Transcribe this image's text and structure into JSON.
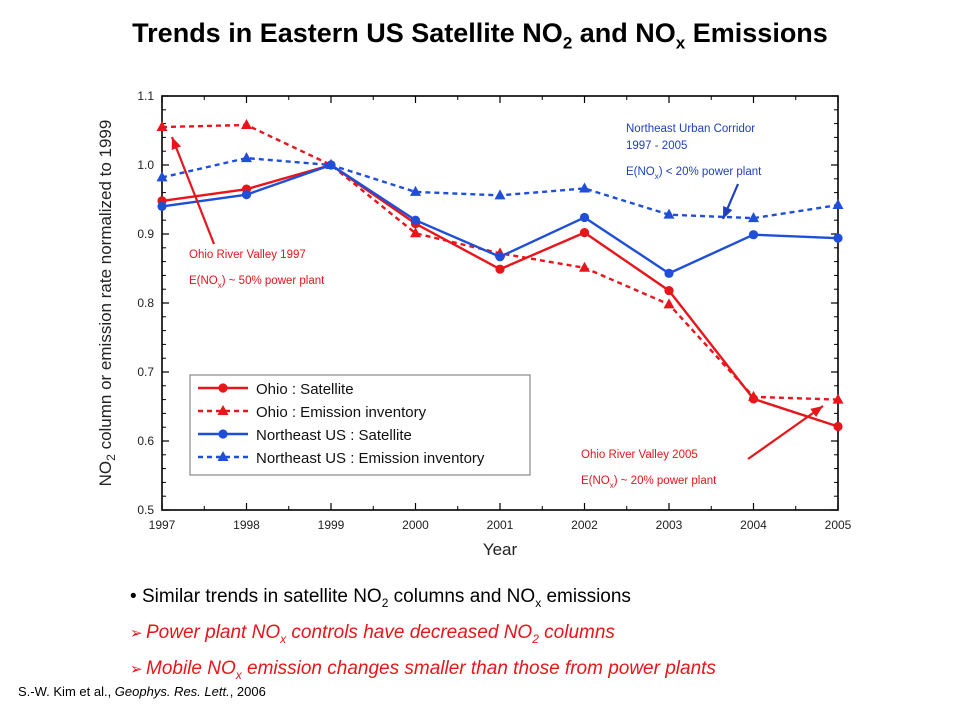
{
  "title": {
    "main": "Trends in Eastern US Satellite NO",
    "sub1": "2",
    "mid": " and NO",
    "sub2": "x",
    "end": " Emissions"
  },
  "chart_data": {
    "type": "line",
    "x": [
      1997,
      1998,
      1999,
      2000,
      2001,
      2002,
      2003,
      2004,
      2005
    ],
    "xlabel": "Year",
    "ylabel": {
      "pre": "NO",
      "sub": "2",
      "post": " column or emission rate normalized to 1999"
    },
    "ylim": [
      0.5,
      1.1
    ],
    "yticks": [
      0.5,
      0.6,
      0.7,
      0.8,
      0.9,
      1.0,
      1.1
    ],
    "ytick_labels": [
      "0.5",
      "0.6",
      "0.7",
      "0.8",
      "0.9",
      "1.0",
      "1.1"
    ],
    "xtick_labels": [
      "1997",
      "1998",
      "1999",
      "2000",
      "2001",
      "2002",
      "2003",
      "2004",
      "2005"
    ],
    "series": [
      {
        "name": "Ohio : Satellite",
        "color": "#e8151a",
        "dash": false,
        "marker": "circle",
        "values": [
          0.948,
          0.965,
          1.0,
          0.915,
          0.849,
          0.902,
          0.818,
          0.661,
          0.621
        ]
      },
      {
        "name": "Ohio : Emission inventory",
        "color": "#e8151a",
        "dash": true,
        "marker": "triangle",
        "values": [
          1.055,
          1.058,
          1.0,
          0.901,
          0.872,
          0.851,
          0.798,
          0.664,
          0.66
        ]
      },
      {
        "name": "Northeast US : Satellite",
        "color": "#1f4fd8",
        "dash": false,
        "marker": "circle",
        "values": [
          0.94,
          0.957,
          1.0,
          0.92,
          0.867,
          0.924,
          0.843,
          0.899,
          0.894
        ]
      },
      {
        "name": "Northeast US : Emission inventory",
        "color": "#1f4fd8",
        "dash": true,
        "marker": "triangle",
        "values": [
          0.982,
          1.01,
          1.0,
          0.961,
          0.956,
          0.966,
          0.928,
          0.923,
          0.942
        ]
      }
    ],
    "legend": "lower-left",
    "annotations": [
      {
        "id": "nuc",
        "color": "#1f3fbf",
        "lines": [
          "Northeast Urban Corridor",
          "1997 - 2005"
        ],
        "expr": {
          "pre": "E(NO",
          "sub": "x",
          "post": ") < 20% power plant"
        }
      },
      {
        "id": "ohio1997",
        "color": "#e8151a",
        "lines": [
          "Ohio River Valley 1997"
        ],
        "expr": {
          "pre": "E(NO",
          "sub": "x",
          "post": ") ~ 50% power plant"
        }
      },
      {
        "id": "ohio2005",
        "color": "#e8151a",
        "lines": [
          "Ohio River Valley 2005"
        ],
        "expr": {
          "pre": "E(NO",
          "sub": "x",
          "post": ") ~ 20% power plant"
        }
      }
    ]
  },
  "bullets": [
    {
      "style": "black",
      "parts": [
        "Similar trends in satellite NO",
        "2",
        " columns and NO",
        "x",
        " emissions"
      ]
    },
    {
      "style": "red",
      "parts": [
        "Power plant NO",
        "x",
        " controls have decreased NO",
        "2",
        " columns"
      ]
    },
    {
      "style": "red",
      "parts": [
        "Mobile NO",
        "x",
        " emission changes smaller than those from power plants"
      ]
    }
  ],
  "bullet_marks": {
    "dot": "•",
    "arrow": "➢"
  },
  "citation": {
    "authors": "S.-W. Kim et al., ",
    "journal": "Geophys. Res. Lett.",
    "rest": ", 2006"
  }
}
